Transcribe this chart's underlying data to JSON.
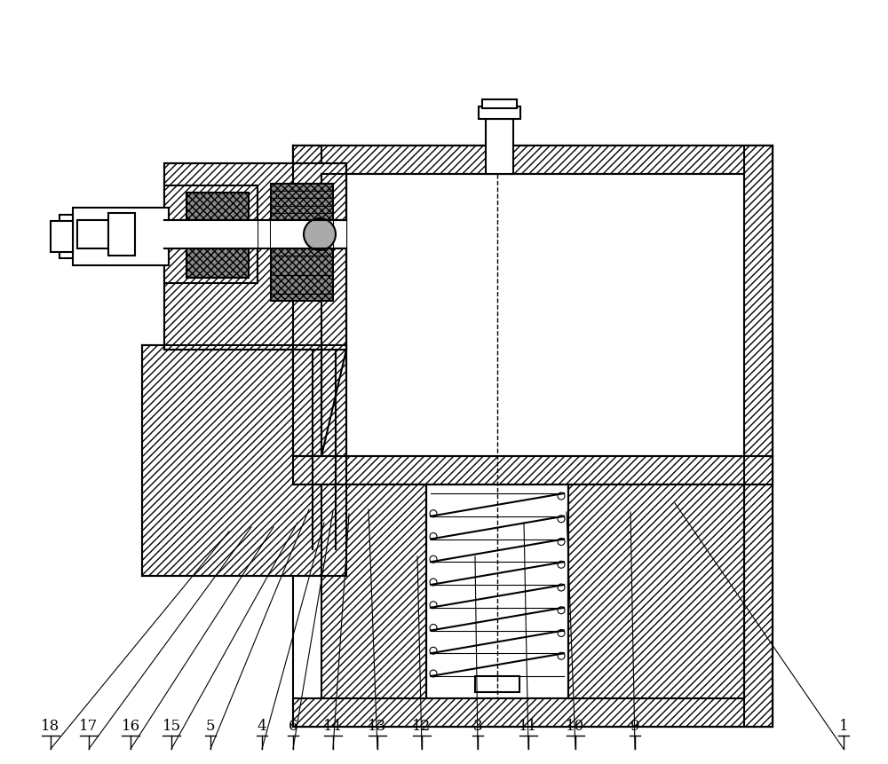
{
  "background": "#ffffff",
  "line_color": "#000000",
  "figsize": [
    10.0,
    8.62
  ],
  "dpi": 100,
  "labels": [
    [
      "18",
      57,
      835,
      258,
      600
    ],
    [
      "17",
      100,
      835,
      283,
      595
    ],
    [
      "16",
      147,
      835,
      308,
      595
    ],
    [
      "15",
      193,
      835,
      335,
      590
    ],
    [
      "5",
      237,
      835,
      348,
      575
    ],
    [
      "4",
      295,
      835,
      365,
      590
    ],
    [
      "6",
      330,
      835,
      375,
      577
    ],
    [
      "14",
      375,
      835,
      393,
      580
    ],
    [
      "13",
      425,
      835,
      415,
      575
    ],
    [
      "12",
      475,
      835,
      470,
      628
    ],
    [
      "3",
      538,
      835,
      535,
      628
    ],
    [
      "11",
      595,
      835,
      590,
      590
    ],
    [
      "10",
      648,
      835,
      638,
      578
    ],
    [
      "9",
      715,
      835,
      710,
      578
    ],
    [
      "1",
      950,
      835,
      760,
      568
    ]
  ]
}
